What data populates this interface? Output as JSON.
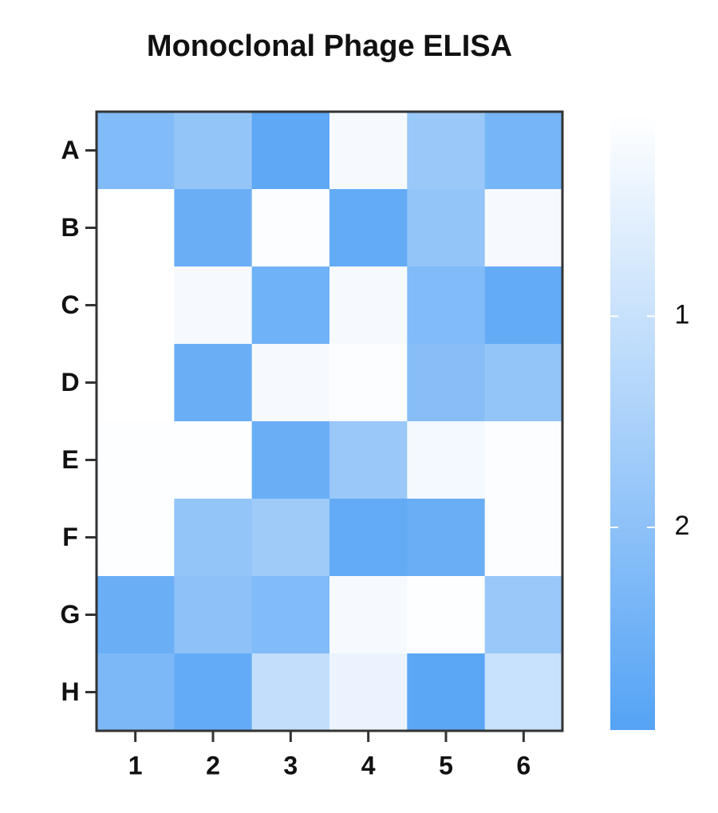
{
  "chart_data": {
    "type": "heatmap",
    "title": "Monoclonal Phage ELISA",
    "x_categories": [
      "1",
      "2",
      "3",
      "4",
      "5",
      "6"
    ],
    "y_categories": [
      "A",
      "B",
      "C",
      "D",
      "E",
      "F",
      "G",
      "H"
    ],
    "values": [
      [
        2.2,
        1.9,
        2.8,
        0.2,
        1.8,
        2.4
      ],
      [
        0.05,
        2.6,
        0.1,
        2.7,
        1.9,
        0.2
      ],
      [
        0.05,
        0.2,
        2.5,
        0.2,
        2.2,
        2.7
      ],
      [
        0.05,
        2.6,
        0.2,
        0.1,
        2.1,
        1.9
      ],
      [
        0.08,
        0.08,
        2.6,
        1.8,
        0.25,
        0.1
      ],
      [
        0.08,
        1.9,
        1.7,
        2.7,
        2.6,
        0.1
      ],
      [
        2.6,
        2.0,
        2.2,
        0.2,
        0.08,
        1.8
      ],
      [
        2.3,
        2.7,
        1.1,
        0.4,
        2.85,
        1.0
      ]
    ],
    "colorscale": [
      "#ffffff",
      "#55a3f5"
    ],
    "zlim": [
      0.05,
      2.96
    ],
    "zticks": [
      1,
      2
    ]
  }
}
